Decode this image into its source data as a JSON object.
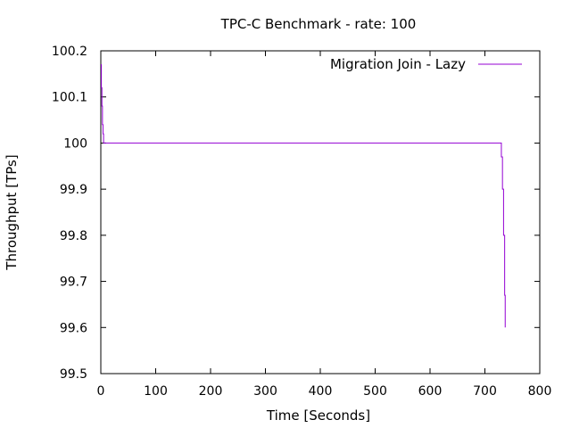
{
  "chart_data": {
    "type": "line",
    "title": "TPC-C Benchmark - rate: 100",
    "xlabel": "Time [Seconds]",
    "ylabel": "Throughput [TPs]",
    "xlim": [
      0,
      800
    ],
    "ylim": [
      99.5,
      100.2
    ],
    "xticks": [
      0,
      100,
      200,
      300,
      400,
      500,
      600,
      700,
      800
    ],
    "yticks": [
      99.5,
      99.6,
      99.7,
      99.8,
      99.9,
      100,
      100.1,
      100.2
    ],
    "xtick_labels": [
      "0",
      "100",
      "200",
      "300",
      "400",
      "500",
      "600",
      "700",
      "800"
    ],
    "ytick_labels": [
      "99.5",
      "99.6",
      "99.7",
      "99.8",
      "99.9",
      "100",
      "100.1",
      "100.2"
    ],
    "grid": false,
    "legend_position": "top-right",
    "series": [
      {
        "name": "Migration Join - Lazy",
        "color": "#9400d3",
        "x": [
          0,
          1,
          1,
          2,
          2,
          3,
          3,
          4,
          4,
          5,
          5,
          730,
          730,
          732,
          732,
          734,
          734,
          736,
          736,
          737,
          737
        ],
        "y": [
          100.17,
          100.17,
          100.12,
          100.12,
          100.08,
          100.08,
          100.04,
          100.04,
          100.02,
          100.02,
          100.0,
          100.0,
          99.97,
          99.97,
          99.9,
          99.9,
          99.8,
          99.8,
          99.67,
          99.67,
          99.6
        ]
      }
    ]
  }
}
